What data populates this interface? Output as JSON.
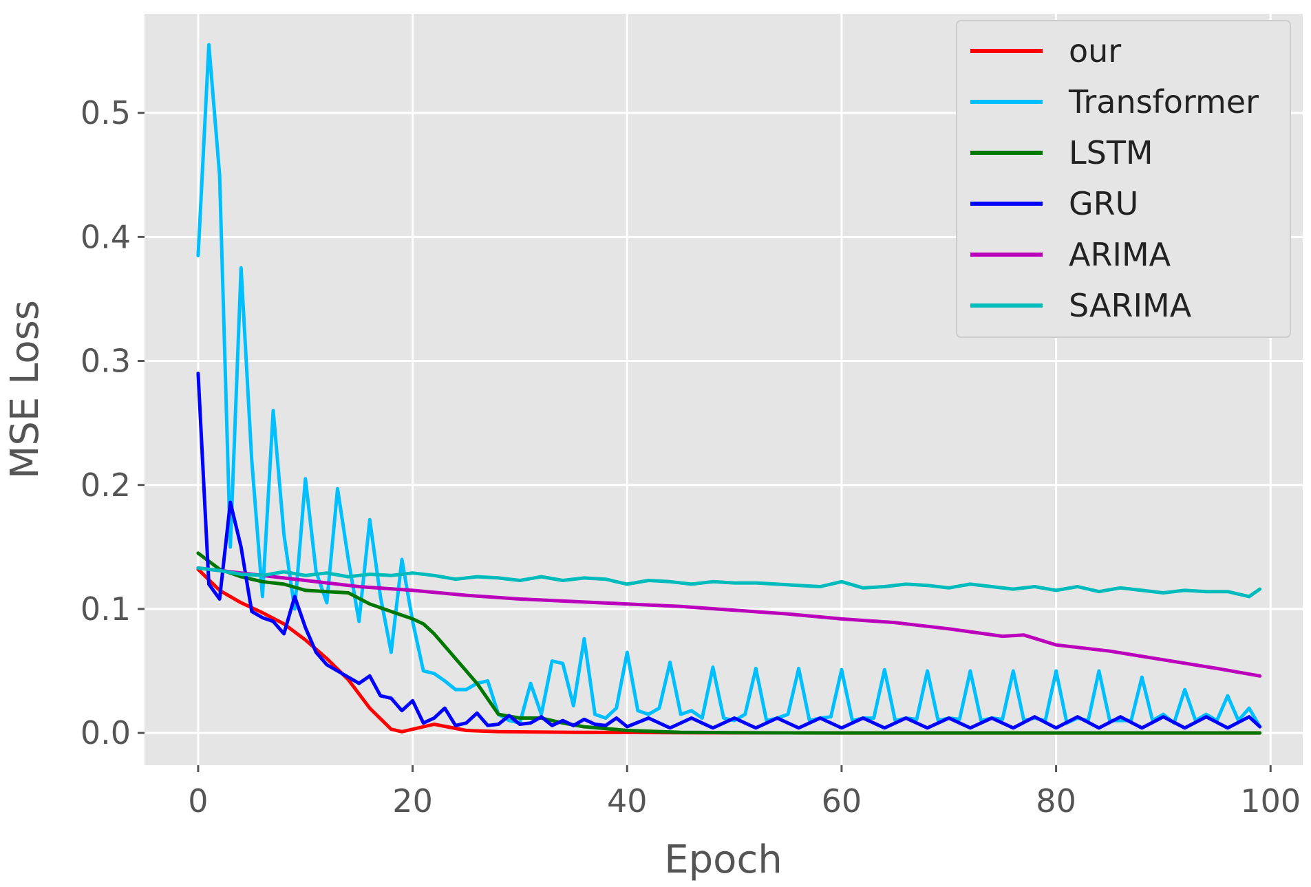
{
  "chart_data": {
    "type": "line",
    "title": "",
    "xlabel": "Epoch",
    "ylabel": "MSE Loss",
    "xlim": [
      -5,
      103
    ],
    "ylim": [
      -0.026,
      0.58
    ],
    "xticks": [
      0,
      20,
      40,
      60,
      80,
      100
    ],
    "yticks": [
      0.0,
      0.1,
      0.2,
      0.3,
      0.4,
      0.5
    ],
    "xtick_labels": [
      "0",
      "20",
      "40",
      "60",
      "80",
      "100"
    ],
    "ytick_labels": [
      "0.0",
      "0.1",
      "0.2",
      "0.3",
      "0.4",
      "0.5"
    ],
    "grid": true,
    "legend_position": "top-right",
    "background": "#e5e5e5",
    "series": [
      {
        "name": "our",
        "color": "#ff0000",
        "x": [
          0,
          2,
          4,
          6,
          8,
          10,
          12,
          14,
          16,
          18,
          19,
          22,
          25,
          28,
          35,
          45,
          60,
          80,
          99
        ],
        "values": [
          0.132,
          0.115,
          0.105,
          0.097,
          0.088,
          0.075,
          0.06,
          0.043,
          0.02,
          0.003,
          0.001,
          0.007,
          0.002,
          0.001,
          0.0005,
          0.0002,
          0.0,
          0.0,
          0.0
        ]
      },
      {
        "name": "Transformer",
        "color": "#00bfff",
        "x": [
          0,
          1,
          2,
          3,
          4,
          5,
          6,
          7,
          8,
          9,
          10,
          11,
          12,
          13,
          14,
          15,
          16,
          17,
          18,
          19,
          20,
          21,
          22,
          23,
          24,
          25,
          26,
          27,
          28,
          29,
          30,
          31,
          32,
          33,
          34,
          35,
          36,
          37,
          38,
          39,
          40,
          41,
          42,
          43,
          44,
          45,
          46,
          47,
          48,
          49,
          50,
          51,
          52,
          53,
          54,
          55,
          56,
          57,
          58,
          59,
          60,
          61,
          62,
          63,
          64,
          65,
          66,
          67,
          68,
          69,
          70,
          71,
          72,
          73,
          74,
          75,
          76,
          77,
          78,
          79,
          80,
          81,
          82,
          83,
          84,
          85,
          86,
          87,
          88,
          89,
          90,
          91,
          92,
          93,
          94,
          95,
          96,
          97,
          98,
          99
        ],
        "values": [
          0.385,
          0.555,
          0.45,
          0.15,
          0.375,
          0.22,
          0.11,
          0.26,
          0.16,
          0.1,
          0.205,
          0.13,
          0.105,
          0.197,
          0.14,
          0.09,
          0.172,
          0.11,
          0.065,
          0.14,
          0.09,
          0.05,
          0.048,
          0.042,
          0.035,
          0.035,
          0.04,
          0.042,
          0.015,
          0.01,
          0.008,
          0.04,
          0.015,
          0.058,
          0.056,
          0.022,
          0.076,
          0.015,
          0.012,
          0.02,
          0.065,
          0.018,
          0.015,
          0.02,
          0.057,
          0.015,
          0.018,
          0.012,
          0.053,
          0.012,
          0.01,
          0.015,
          0.052,
          0.01,
          0.012,
          0.015,
          0.052,
          0.01,
          0.012,
          0.013,
          0.051,
          0.01,
          0.012,
          0.012,
          0.051,
          0.01,
          0.012,
          0.011,
          0.05,
          0.01,
          0.012,
          0.011,
          0.05,
          0.01,
          0.012,
          0.011,
          0.05,
          0.01,
          0.012,
          0.01,
          0.05,
          0.008,
          0.012,
          0.01,
          0.05,
          0.01,
          0.01,
          0.01,
          0.045,
          0.01,
          0.015,
          0.008,
          0.035,
          0.01,
          0.015,
          0.01,
          0.03,
          0.01,
          0.02,
          0.005
        ]
      },
      {
        "name": "LSTM",
        "color": "#007700",
        "x": [
          0,
          2,
          4,
          6,
          8,
          10,
          12,
          14,
          16,
          18,
          20,
          21,
          22,
          24,
          26,
          28,
          30,
          32,
          34,
          36,
          40,
          45,
          50,
          60,
          80,
          99
        ],
        "values": [
          0.145,
          0.132,
          0.126,
          0.122,
          0.12,
          0.115,
          0.114,
          0.113,
          0.104,
          0.098,
          0.092,
          0.088,
          0.08,
          0.06,
          0.04,
          0.015,
          0.012,
          0.012,
          0.008,
          0.005,
          0.002,
          0.0005,
          0.0002,
          0.0,
          0.0,
          0.0
        ]
      },
      {
        "name": "GRU",
        "color": "#0000ff",
        "x": [
          0,
          1,
          2,
          3,
          4,
          5,
          6,
          7,
          8,
          9,
          10,
          11,
          12,
          13,
          14,
          15,
          16,
          17,
          18,
          19,
          20,
          21,
          22,
          23,
          24,
          25,
          26,
          27,
          28,
          29,
          30,
          31,
          32,
          33,
          34,
          35,
          36,
          37,
          38,
          39,
          40,
          42,
          44,
          46,
          48,
          50,
          52,
          54,
          56,
          58,
          60,
          62,
          64,
          66,
          68,
          70,
          72,
          74,
          76,
          78,
          80,
          82,
          84,
          86,
          88,
          90,
          92,
          94,
          96,
          98,
          99
        ],
        "values": [
          0.29,
          0.12,
          0.108,
          0.186,
          0.15,
          0.098,
          0.093,
          0.09,
          0.08,
          0.11,
          0.085,
          0.065,
          0.055,
          0.05,
          0.045,
          0.04,
          0.046,
          0.03,
          0.028,
          0.018,
          0.026,
          0.008,
          0.012,
          0.02,
          0.006,
          0.008,
          0.016,
          0.006,
          0.007,
          0.014,
          0.007,
          0.008,
          0.013,
          0.006,
          0.01,
          0.006,
          0.011,
          0.007,
          0.006,
          0.012,
          0.005,
          0.012,
          0.004,
          0.012,
          0.004,
          0.012,
          0.004,
          0.012,
          0.004,
          0.012,
          0.004,
          0.012,
          0.004,
          0.012,
          0.004,
          0.012,
          0.004,
          0.012,
          0.004,
          0.013,
          0.004,
          0.013,
          0.004,
          0.013,
          0.004,
          0.013,
          0.004,
          0.013,
          0.004,
          0.013,
          0.005
        ]
      },
      {
        "name": "ARIMA",
        "color": "#bb00bb",
        "x": [
          0,
          5,
          10,
          15,
          20,
          25,
          30,
          35,
          40,
          45,
          50,
          55,
          60,
          65,
          70,
          75,
          77,
          80,
          85,
          90,
          95,
          99
        ],
        "values": [
          0.133,
          0.128,
          0.123,
          0.118,
          0.115,
          0.111,
          0.108,
          0.106,
          0.104,
          0.102,
          0.099,
          0.096,
          0.092,
          0.089,
          0.084,
          0.078,
          0.079,
          0.071,
          0.066,
          0.059,
          0.052,
          0.046
        ]
      },
      {
        "name": "SARIMA",
        "color": "#00bbbb",
        "x": [
          0,
          2,
          4,
          6,
          8,
          10,
          12,
          14,
          16,
          18,
          20,
          22,
          24,
          26,
          28,
          30,
          32,
          34,
          36,
          38,
          40,
          42,
          44,
          46,
          48,
          50,
          52,
          54,
          56,
          58,
          60,
          62,
          64,
          66,
          68,
          70,
          72,
          74,
          76,
          78,
          80,
          82,
          84,
          86,
          88,
          90,
          92,
          94,
          96,
          98,
          99
        ],
        "values": [
          0.133,
          0.131,
          0.128,
          0.127,
          0.13,
          0.127,
          0.129,
          0.126,
          0.128,
          0.127,
          0.129,
          0.127,
          0.124,
          0.126,
          0.125,
          0.123,
          0.126,
          0.123,
          0.125,
          0.124,
          0.12,
          0.123,
          0.122,
          0.12,
          0.122,
          0.121,
          0.121,
          0.12,
          0.119,
          0.118,
          0.122,
          0.117,
          0.118,
          0.12,
          0.119,
          0.117,
          0.12,
          0.118,
          0.116,
          0.118,
          0.115,
          0.118,
          0.114,
          0.117,
          0.115,
          0.113,
          0.115,
          0.114,
          0.114,
          0.11,
          0.116
        ]
      }
    ]
  }
}
